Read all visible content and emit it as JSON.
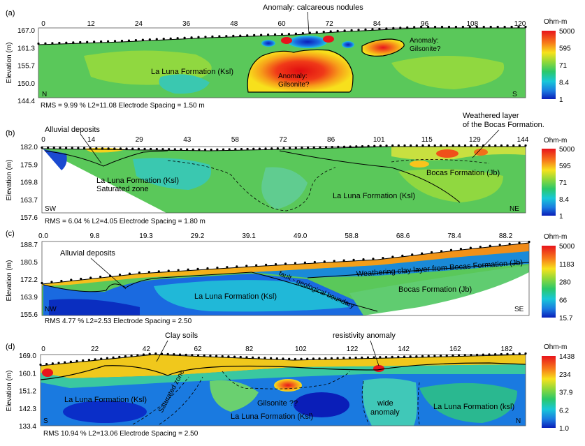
{
  "colorbar_unit": "Ohm-m",
  "panels": [
    {
      "id": "(a)",
      "x_ticks": [
        "0",
        "12",
        "24",
        "36",
        "48",
        "60",
        "72",
        "84",
        "96",
        "108",
        "120"
      ],
      "y_ticks": [
        "167.0",
        "161.3",
        "155.7",
        "150.0",
        "144.4"
      ],
      "ylabel": "Elevation (m)",
      "left_dir": "N",
      "right_dir": "S",
      "stats": "RMS = 9.99 %   L2=11.08   Electrode Spacing = 1.50 m",
      "colorbar": [
        "5000",
        "595",
        "71",
        "8.4",
        "1"
      ],
      "annotations": [
        "Anomaly: calcareous nodules",
        "Anomaly:",
        "Gilsonite?",
        "La Luna Formation (Ksl)",
        "Anomaly:",
        "Gilsonite?"
      ]
    },
    {
      "id": "(b)",
      "x_ticks": [
        "0",
        "14",
        "29",
        "43",
        "58",
        "72",
        "86",
        "101",
        "115",
        "129",
        "144"
      ],
      "y_ticks": [
        "182.0",
        "175.9",
        "169.8",
        "163.7",
        "157.6"
      ],
      "ylabel": "Elevation (m)",
      "left_dir": "SW",
      "right_dir": "NE",
      "stats": "RMS = 6.04 %   L2=4.05   Electrode Spacing = 1.80 m",
      "colorbar": [
        "5000",
        "595",
        "71",
        "8.4",
        "1"
      ],
      "annotations": [
        "Alluvial deposits",
        "Weathered layer",
        "of the Bocas Formation.",
        "La Luna Formation (Ksl)",
        "Saturated zone",
        "Bocas Formation (Jb)",
        "La Luna Formation (Ksl)"
      ]
    },
    {
      "id": "(c)",
      "x_ticks": [
        "0.0",
        "9.8",
        "19.3",
        "29.2",
        "39.1",
        "49.0",
        "58.8",
        "68.6",
        "78.4",
        "88.2"
      ],
      "y_ticks": [
        "188.7",
        "180.5",
        "172.2",
        "163.9",
        "155.6"
      ],
      "ylabel": "Elevation (m)",
      "left_dir": "NW",
      "right_dir": "SE",
      "stats": "RMS 4.77 %   L2=2.53   Electrode Spacing = 2.50",
      "colorbar": [
        "5000",
        "1183",
        "280",
        "66",
        "15.7"
      ],
      "annotations": [
        "Alluvial deposits",
        "Weathering clay  layer from Bocas Formation (Jb)",
        "fault - geological boundary",
        "La Luna Formation (Ksl)",
        "Bocas Formation (Jb)"
      ]
    },
    {
      "id": "(d)",
      "x_ticks": [
        "0",
        "22",
        "42",
        "62",
        "82",
        "102",
        "122",
        "142",
        "162",
        "182"
      ],
      "y_ticks": [
        "169.0",
        "160.1",
        "151.2",
        "142.3",
        "133.4"
      ],
      "ylabel": "Elevation (m)",
      "left_dir": "S",
      "right_dir": "N",
      "stats": "RMS 10.94 %   L2=13.06   Electrode Spacing = 2.50",
      "colorbar": [
        "1438",
        "234",
        "37.9",
        "6.2",
        "1.0"
      ],
      "annotations": [
        "Clay soils",
        "resistivity anomaly",
        "La Luna Formation (Ksl)",
        "Saturated zone",
        "Gilsonite ??",
        "La Luna Formation (Ksl)",
        "wide",
        "anomaly",
        "La Luna Formation (ksl)"
      ]
    }
  ]
}
